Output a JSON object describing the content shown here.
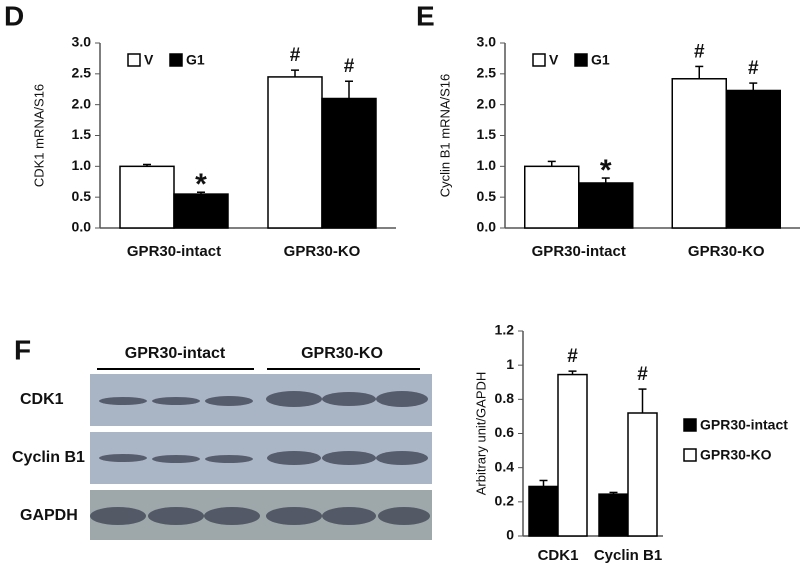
{
  "chart_data": [
    {
      "type": "bar",
      "panel": "D",
      "ylabel": "CDK1 mRNA/S16",
      "categories": [
        "GPR30-intact",
        "GPR30-KO"
      ],
      "series": [
        {
          "name": "V",
          "color": "#ffffff",
          "values": [
            1.0,
            2.45
          ],
          "errors": [
            0.03,
            0.11
          ],
          "annotations": [
            null,
            "#"
          ]
        },
        {
          "name": "G1",
          "color": "#000000",
          "values": [
            0.55,
            2.1
          ],
          "errors": [
            0.03,
            0.28
          ],
          "annotations": [
            "*",
            "#"
          ]
        }
      ],
      "ylim": [
        0,
        3
      ],
      "yticks": [
        {
          "value": 0,
          "label": "0.0"
        },
        0.5,
        {
          "value": 1,
          "label": "1.0"
        },
        1.5,
        {
          "value": 2,
          "label": "2.0"
        },
        2.5,
        {
          "value": 3,
          "label": "3.0"
        }
      ],
      "legend": "upper left"
    },
    {
      "type": "bar",
      "panel": "E",
      "ylabel": "Cyclin B1 mRNA/S16",
      "categories": [
        "GPR30-intact",
        "GPR30-KO"
      ],
      "series": [
        {
          "name": "V",
          "color": "#ffffff",
          "values": [
            1.0,
            2.42
          ],
          "errors": [
            0.08,
            0.2
          ],
          "annotations": [
            null,
            "#"
          ]
        },
        {
          "name": "G1",
          "color": "#000000",
          "values": [
            0.73,
            2.23
          ],
          "errors": [
            0.08,
            0.12
          ],
          "annotations": [
            "*",
            "#"
          ]
        }
      ],
      "ylim": [
        0,
        3
      ],
      "yticks": [
        {
          "value": 0,
          "label": "0.0"
        },
        0.5,
        {
          "value": 1,
          "label": "1.0"
        },
        1.5,
        {
          "value": 2,
          "label": "2.0"
        },
        2.5,
        {
          "value": 3,
          "label": "3.0"
        }
      ],
      "legend": "upper left"
    },
    {
      "type": "bar",
      "ylabel": "Arbitrary unit/GAPDH",
      "categories": [
        "CDK1",
        "Cyclin B1"
      ],
      "series": [
        {
          "name": "GPR30-intact",
          "color": "#000000",
          "values": [
            0.29,
            0.245
          ],
          "errors": [
            0.035,
            0.01
          ],
          "annotations": [
            null,
            null
          ]
        },
        {
          "name": "GPR30-KO",
          "color": "#ffffff",
          "values": [
            0.945,
            0.72
          ],
          "errors": [
            0.02,
            0.14
          ],
          "annotations": [
            "#",
            "#"
          ]
        }
      ],
      "ylim": [
        0,
        1.2
      ],
      "yticks": [
        0,
        0.2,
        0.4,
        0.6,
        0.8,
        1,
        1.2
      ],
      "legend": "right"
    }
  ],
  "blot": {
    "panel": "F",
    "groups": [
      "GPR30-intact",
      "GPR30-KO"
    ],
    "rows": [
      "CDK1",
      "Cyclin B1",
      "GAPDH"
    ]
  }
}
